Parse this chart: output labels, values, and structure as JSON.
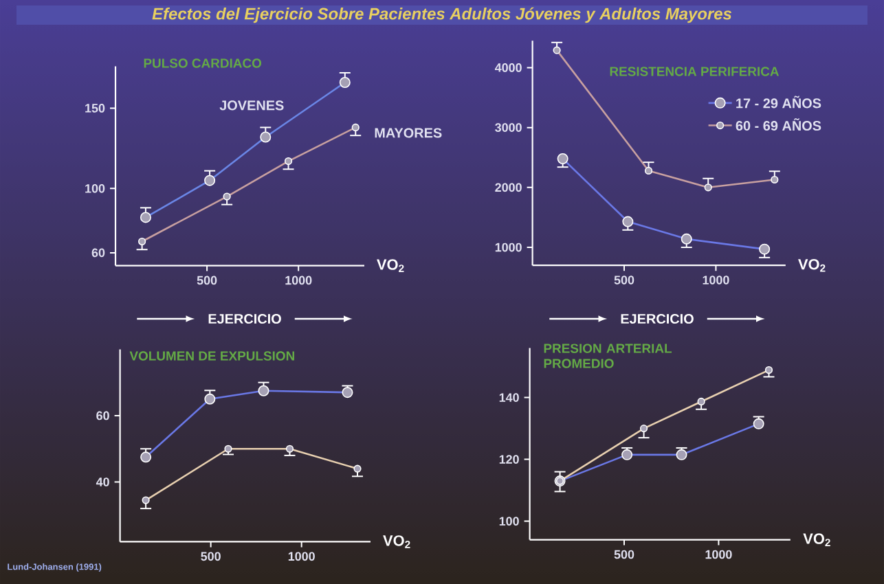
{
  "chart_data": [
    {
      "type": "other",
      "title": "Efectos del Ejercicio Sobre Pacientes Adultos Jóvenes y Adultos Mayores"
    },
    {
      "type": "line",
      "title": "PULSO CARDIACO",
      "xlabel": "VO$_{2}$",
      "annotations": [
        "EJERCICIO"
      ],
      "xlim": [
        0,
        1360
      ],
      "ylim": [
        52,
        176
      ],
      "xticks": [
        500,
        1000
      ],
      "yticks": [
        60,
        100,
        150
      ],
      "marker": "circle",
      "legend": false,
      "series": [
        {
          "name": "JOVENES",
          "color": "#6a86e6",
          "x": [
            165,
            515,
            820,
            1254
          ],
          "values": [
            82,
            105,
            132,
            166
          ],
          "errors": [
            [
              82,
              88
            ],
            [
              105,
              111
            ],
            [
              132,
              138
            ],
            [
              166,
              172
            ]
          ]
        },
        {
          "name": "MAYORES",
          "color": "#c8a0a0",
          "x": [
            145,
            609,
            945,
            1312
          ],
          "values": [
            67,
            95,
            117,
            138
          ],
          "errors": [
            [
              62,
              67
            ],
            [
              90,
              95
            ],
            [
              112,
              117
            ],
            [
              133,
              138
            ]
          ]
        }
      ]
    },
    {
      "type": "line",
      "title": "RESISTENCIA PERIFERICA",
      "xlabel": "VO$_{2}$",
      "annotations": [
        "EJERCICIO"
      ],
      "xlim": [
        0,
        1380
      ],
      "ylim": [
        700,
        4450
      ],
      "xticks": [
        500,
        1000
      ],
      "yticks": [
        1000,
        2000,
        3000,
        4000
      ],
      "marker": "circle",
      "legend": "top right",
      "series": [
        {
          "name": "17 - 29 AÑOS",
          "color": "#6a78e6",
          "x": [
            165,
            520,
            840,
            1265
          ],
          "values": [
            2480,
            1430,
            1140,
            970
          ],
          "errors": [
            [
              2340,
              2480
            ],
            [
              1290,
              1430
            ],
            [
              1000,
              1140
            ],
            [
              830,
              970
            ]
          ]
        },
        {
          "name": "60 - 69 AÑOS",
          "color": "#c8a0a0",
          "x": [
            133,
            633,
            958,
            1320
          ],
          "values": [
            4290,
            2280,
            2000,
            2130
          ],
          "errors": [
            [
              4290,
              4420
            ],
            [
              2280,
              2420
            ],
            [
              2000,
              2150
            ],
            [
              2130,
              2270
            ]
          ]
        }
      ]
    },
    {
      "type": "line",
      "title": "VOLUMEN DE EXPULSION",
      "xlabel": "VO$_{2}$",
      "annotations": [
        "Lund-Johansen (1991)"
      ],
      "xlim": [
        0,
        1380
      ],
      "ylim": [
        22,
        80
      ],
      "xticks": [
        500,
        1000
      ],
      "yticks": [
        40,
        60
      ],
      "marker": "circle",
      "legend": false,
      "series": [
        {
          "color": "#6a78e6",
          "x": [
            142,
            495,
            791,
            1253
          ],
          "values": [
            47.5,
            65,
            67.5,
            67
          ],
          "errors": [
            [
              47.5,
              50
            ],
            [
              65,
              67.6
            ],
            [
              67.5,
              70
            ],
            [
              67,
              69
            ]
          ]
        },
        {
          "color": "#e8d0b0",
          "x": [
            142,
            596,
            935,
            1308
          ],
          "values": [
            34.5,
            50,
            50,
            44
          ],
          "errors": [
            [
              32,
              34.5
            ],
            [
              48.3,
              50
            ],
            [
              48,
              50
            ],
            [
              41.7,
              44
            ]
          ]
        }
      ]
    },
    {
      "type": "line",
      "title": "PRESION ARTERIAL PROMEDIO",
      "xlabel": "VO$_{2}$",
      "xlim": [
        0,
        1380
      ],
      "ylim": [
        94,
        156
      ],
      "xticks": [
        500,
        1000
      ],
      "yticks": [
        100,
        120,
        140
      ],
      "marker": "circle",
      "legend": false,
      "series": [
        {
          "color": "#6a78e6",
          "x": [
            160,
            515,
            804,
            1212
          ],
          "values": [
            113,
            121.5,
            121.5,
            131.5
          ],
          "errors": [
            [
              113,
              116
            ],
            [
              121.5,
              123.7
            ],
            [
              121.5,
              123.7
            ],
            [
              131.5,
              133.8
            ]
          ]
        },
        {
          "color": "#e8d0b0",
          "x": [
            160,
            604,
            908,
            1266
          ],
          "values": [
            113,
            130,
            138.7,
            148.9
          ],
          "errors": [
            [
              109.6,
              113
            ],
            [
              127,
              130
            ],
            [
              136.2,
              138.7
            ],
            [
              146.7,
              148.9
            ]
          ]
        }
      ]
    }
  ]
}
